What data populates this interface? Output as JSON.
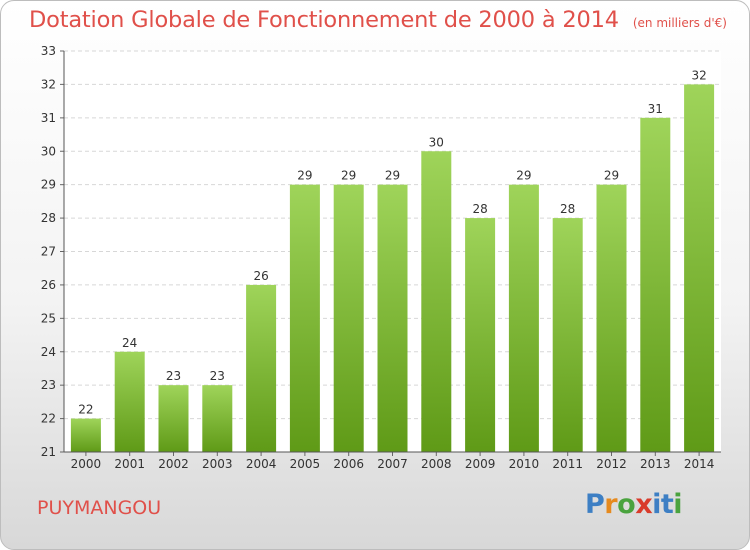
{
  "title": "Dotation Globale de Fonctionnement de 2000 à 2014",
  "subtitle": "(en milliers d'€)",
  "commune": "PUYMANGOU",
  "logo": {
    "letters": [
      "P",
      "r",
      "o",
      "x",
      "i",
      "t",
      "i"
    ],
    "colors": [
      "#3d7fc4",
      "#e68a1e",
      "#4aa33e",
      "#d93b2b",
      "#3d7fc4",
      "#3d7fc4",
      "#4aa33e"
    ]
  },
  "colors": {
    "title": "#e0504a",
    "bar_top": "#9fd45a",
    "bar_bottom": "#5f9a17",
    "grid": "#d7d7d7"
  },
  "chart_data": {
    "type": "bar",
    "categories": [
      "2000",
      "2001",
      "2002",
      "2003",
      "2004",
      "2005",
      "2006",
      "2007",
      "2008",
      "2009",
      "2010",
      "2011",
      "2012",
      "2013",
      "2014"
    ],
    "values": [
      22,
      24,
      23,
      23,
      26,
      29,
      29,
      29,
      30,
      28,
      29,
      28,
      29,
      31,
      32
    ],
    "title": "Dotation Globale de Fonctionnement de 2000 à 2014",
    "subtitle": "(en milliers d'€)",
    "xlabel": "",
    "ylabel": "",
    "ylim": [
      21,
      33
    ],
    "yticks": [
      21,
      22,
      23,
      24,
      25,
      26,
      27,
      28,
      29,
      30,
      31,
      32,
      33
    ],
    "grid": true,
    "data_labels": true
  }
}
